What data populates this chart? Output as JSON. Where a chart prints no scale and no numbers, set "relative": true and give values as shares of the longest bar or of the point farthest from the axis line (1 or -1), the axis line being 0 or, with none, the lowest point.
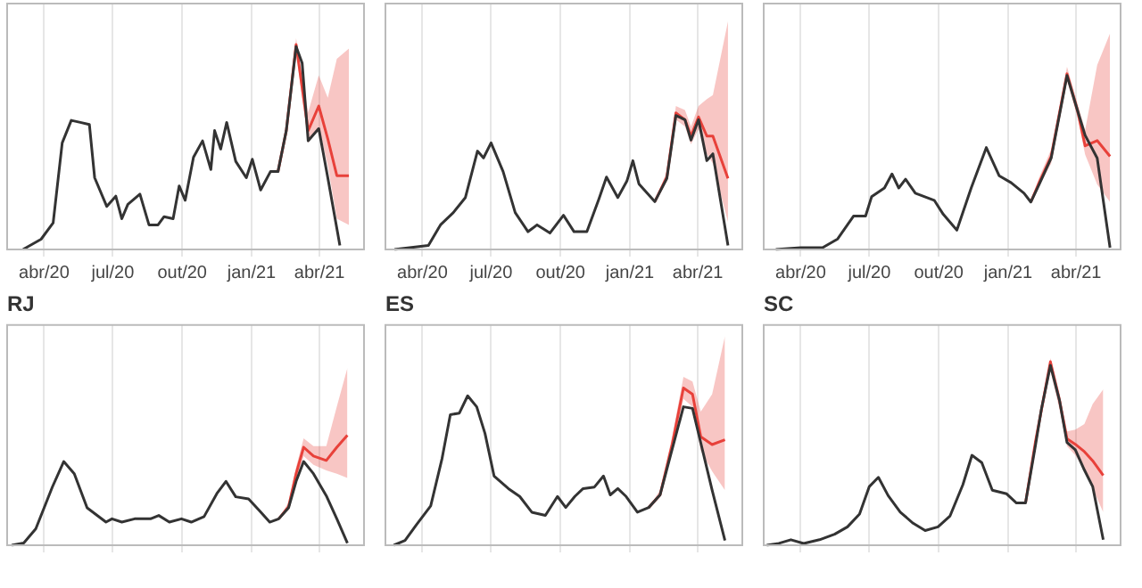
{
  "chart_data": [
    {
      "type": "line",
      "relative": true,
      "grid": "x",
      "tick_labels": "x",
      "xlim": [
        "2020-02-12",
        "2021-05-30"
      ],
      "xticks": [
        {
          "value": "2020-04-01",
          "label": "abr/20"
        },
        {
          "value": "2020-07-01",
          "label": "jul/20"
        },
        {
          "value": "2020-10-01",
          "label": "out/20"
        },
        {
          "value": "2021-01-01",
          "label": "jan/21"
        },
        {
          "value": "2021-04-01",
          "label": "abr/21"
        }
      ],
      "series": [
        {
          "color": "#333333",
          "x": [
            "2020-03-04",
            "2020-03-28",
            "2020-04-13",
            "2020-04-25",
            "2020-05-07",
            "2020-05-19",
            "2020-05-31",
            "2020-06-07",
            "2020-06-23",
            "2020-07-05",
            "2020-07-13",
            "2020-07-21",
            "2020-08-06",
            "2020-08-18",
            "2020-08-30",
            "2020-09-07",
            "2020-09-19",
            "2020-09-27",
            "2020-10-05",
            "2020-10-16",
            "2020-10-28",
            "2020-11-08",
            "2020-11-13",
            "2020-11-21",
            "2020-11-29",
            "2020-12-11",
            "2020-12-25",
            "2021-01-02",
            "2021-01-13",
            "2021-01-26",
            "2021-02-05",
            "2021-02-16",
            "2021-03-01",
            "2021-03-09",
            "2021-03-17",
            "2021-03-31",
            "2021-04-12",
            "2021-04-28"
          ],
          "values": [
            0,
            0.05,
            0.13,
            0.52,
            0.63,
            0.62,
            0.61,
            0.35,
            0.21,
            0.26,
            0.15,
            0.22,
            0.27,
            0.12,
            0.12,
            0.16,
            0.15,
            0.31,
            0.24,
            0.45,
            0.53,
            0.39,
            0.58,
            0.49,
            0.62,
            0.43,
            0.35,
            0.44,
            0.29,
            0.38,
            0.38,
            0.58,
            0.99,
            0.91,
            0.53,
            0.59,
            0.35,
            0.02
          ]
        },
        {
          "color": "#e8413a",
          "x": [
            "2021-02-05",
            "2021-02-16",
            "2021-03-01",
            "2021-03-17",
            "2021-03-31",
            "2021-04-12",
            "2021-04-24",
            "2021-05-10"
          ],
          "values": [
            0.38,
            0.58,
            1,
            0.58,
            0.7,
            0.54,
            0.36,
            0.36
          ],
          "lower": [
            0.38,
            0.56,
            0.96,
            0.52,
            0.6,
            0.41,
            0.15,
            0.12
          ],
          "upper": [
            0.38,
            0.6,
            1.03,
            0.67,
            0.85,
            0.74,
            0.93,
            0.98
          ]
        }
      ]
    },
    {
      "type": "line",
      "relative": true,
      "grid": "x",
      "tick_labels": "x",
      "xlim": [
        "2020-02-12",
        "2021-05-30"
      ],
      "xticks": [
        {
          "value": "2020-04-01",
          "label": "abr/20"
        },
        {
          "value": "2020-07-01",
          "label": "jul/20"
        },
        {
          "value": "2020-10-01",
          "label": "out/20"
        },
        {
          "value": "2021-01-01",
          "label": "jan/21"
        },
        {
          "value": "2021-04-01",
          "label": "abr/21"
        }
      ],
      "series": [
        {
          "color": "#333333",
          "x": [
            "2020-02-24",
            "2020-04-09",
            "2020-04-25",
            "2020-05-12",
            "2020-05-28",
            "2020-06-13",
            "2020-06-21",
            "2020-07-01",
            "2020-07-17",
            "2020-08-02",
            "2020-08-19",
            "2020-08-31",
            "2020-09-17",
            "2020-10-05",
            "2020-10-19",
            "2020-11-05",
            "2020-11-21",
            "2020-12-01",
            "2020-12-16",
            "2020-12-28",
            "2021-01-05",
            "2021-01-13",
            "2021-02-03",
            "2021-02-19",
            "2021-03-03",
            "2021-03-15",
            "2021-03-23",
            "2021-04-02",
            "2021-04-13",
            "2021-04-21",
            "2021-05-11"
          ],
          "values": [
            0,
            0.03,
            0.18,
            0.27,
            0.38,
            0.72,
            0.67,
            0.78,
            0.57,
            0.27,
            0.13,
            0.18,
            0.12,
            0.25,
            0.13,
            0.13,
            0.37,
            0.53,
            0.38,
            0.5,
            0.65,
            0.48,
            0.35,
            0.52,
            0.98,
            0.95,
            0.8,
            0.95,
            0.65,
            0.7,
            0.03
          ]
        },
        {
          "color": "#e8413a",
          "x": [
            "2021-02-03",
            "2021-02-19",
            "2021-03-03",
            "2021-03-15",
            "2021-03-23",
            "2021-04-02",
            "2021-04-13",
            "2021-04-21",
            "2021-05-11"
          ],
          "values": [
            0.35,
            0.53,
            1,
            0.95,
            0.83,
            0.97,
            0.83,
            0.83,
            0.52
          ],
          "lower": [
            0.35,
            0.5,
            0.95,
            0.9,
            0.77,
            0.88,
            0.7,
            0.63,
            0.2
          ],
          "upper": [
            0.35,
            0.57,
            1.05,
            1.02,
            0.9,
            1.05,
            1.1,
            1.13,
            1.67
          ]
        }
      ]
    },
    {
      "type": "line",
      "relative": true,
      "grid": "x",
      "tick_labels": "x",
      "xlim": [
        "2020-02-12",
        "2021-05-30"
      ],
      "xticks": [
        {
          "value": "2020-04-01",
          "label": "abr/20"
        },
        {
          "value": "2020-07-01",
          "label": "jul/20"
        },
        {
          "value": "2020-10-01",
          "label": "out/20"
        },
        {
          "value": "2021-01-01",
          "label": "jan/21"
        },
        {
          "value": "2021-04-01",
          "label": "abr/21"
        }
      ],
      "series": [
        {
          "color": "#333333",
          "x": [
            "2020-02-28",
            "2020-04-01",
            "2020-04-30",
            "2020-05-20",
            "2020-06-10",
            "2020-06-26",
            "2020-07-04",
            "2020-07-21",
            "2020-07-31",
            "2020-08-09",
            "2020-08-18",
            "2020-08-31",
            "2020-09-25",
            "2020-10-07",
            "2020-10-25",
            "2020-11-13",
            "2020-12-03",
            "2020-12-20",
            "2021-01-05",
            "2021-01-22",
            "2021-01-31",
            "2021-02-11",
            "2021-02-27",
            "2021-03-20",
            "2021-04-03",
            "2021-04-13",
            "2021-04-29",
            "2021-05-16"
          ],
          "values": [
            0,
            0.01,
            0.01,
            0.06,
            0.19,
            0.19,
            0.3,
            0.35,
            0.43,
            0.35,
            0.4,
            0.32,
            0.28,
            0.2,
            0.11,
            0.35,
            0.58,
            0.42,
            0.38,
            0.32,
            0.27,
            0.37,
            0.52,
            0.99,
            0.79,
            0.65,
            0.52,
            0.01
          ]
        },
        {
          "color": "#e8413a",
          "x": [
            "2021-01-31",
            "2021-02-11",
            "2021-02-27",
            "2021-03-20",
            "2021-04-03",
            "2021-04-13",
            "2021-04-29",
            "2021-05-16"
          ],
          "values": [
            0.27,
            0.38,
            0.53,
            1,
            0.79,
            0.59,
            0.62,
            0.53
          ],
          "lower": [
            0.27,
            0.36,
            0.49,
            0.96,
            0.75,
            0.54,
            0.37,
            0.27
          ],
          "upper": [
            0.27,
            0.41,
            0.57,
            1.04,
            0.83,
            0.68,
            1.05,
            1.23
          ]
        }
      ]
    },
    {
      "type": "line",
      "title": "RJ",
      "relative": true,
      "grid": "x",
      "tick_labels": false,
      "xlim": [
        "2020-02-12",
        "2021-05-30"
      ],
      "xticks": [
        {
          "value": "2020-04-01",
          "label": null
        },
        {
          "value": "2020-07-01",
          "label": null
        },
        {
          "value": "2020-10-01",
          "label": null
        },
        {
          "value": "2021-01-01",
          "label": null
        },
        {
          "value": "2021-04-01",
          "label": null
        }
      ],
      "series": [
        {
          "color": "#333333",
          "x": [
            "2020-02-18",
            "2020-03-05",
            "2020-03-21",
            "2020-04-12",
            "2020-04-27",
            "2020-05-11",
            "2020-05-28",
            "2020-06-22",
            "2020-06-30",
            "2020-07-13",
            "2020-07-30",
            "2020-08-20",
            "2020-08-31",
            "2020-09-14",
            "2020-09-30",
            "2020-10-13",
            "2020-10-30",
            "2020-11-16",
            "2020-11-28",
            "2020-12-11",
            "2020-12-28",
            "2021-01-12",
            "2021-01-25",
            "2021-02-06",
            "2021-02-19",
            "2021-03-01",
            "2021-03-11",
            "2021-03-24",
            "2021-04-10",
            "2021-04-24",
            "2021-05-08"
          ],
          "values": [
            0,
            0.02,
            0.15,
            0.53,
            0.76,
            0.65,
            0.34,
            0.21,
            0.24,
            0.21,
            0.24,
            0.24,
            0.27,
            0.21,
            0.24,
            0.21,
            0.26,
            0.47,
            0.58,
            0.44,
            0.42,
            0.31,
            0.21,
            0.24,
            0.34,
            0.58,
            0.76,
            0.65,
            0.45,
            0.24,
            0.02
          ]
        },
        {
          "color": "#e8413a",
          "x": [
            "2021-02-06",
            "2021-02-19",
            "2021-03-01",
            "2021-03-11",
            "2021-03-24",
            "2021-04-10",
            "2021-04-24",
            "2021-05-08"
          ],
          "values": [
            0.24,
            0.35,
            0.65,
            0.89,
            0.81,
            0.77,
            0.89,
            1
          ],
          "lower": [
            0.24,
            0.32,
            0.58,
            0.81,
            0.73,
            0.68,
            0.65,
            0.61
          ],
          "upper": [
            0.24,
            0.39,
            0.71,
            0.97,
            0.9,
            0.9,
            1.26,
            1.61
          ]
        }
      ]
    },
    {
      "type": "line",
      "title": "ES",
      "relative": true,
      "grid": "x",
      "tick_labels": false,
      "xlim": [
        "2020-02-12",
        "2021-05-30"
      ],
      "xticks": [
        {
          "value": "2020-04-01",
          "label": null
        },
        {
          "value": "2020-07-01",
          "label": null
        },
        {
          "value": "2020-10-01",
          "label": null
        },
        {
          "value": "2021-01-01",
          "label": null
        },
        {
          "value": "2021-04-01",
          "label": null
        }
      ],
      "series": [
        {
          "color": "#333333",
          "x": [
            "2020-02-23",
            "2020-03-09",
            "2020-03-24",
            "2020-04-12",
            "2020-04-27",
            "2020-05-08",
            "2020-05-20",
            "2020-05-31",
            "2020-06-12",
            "2020-06-23",
            "2020-07-05",
            "2020-07-24",
            "2020-08-08",
            "2020-08-24",
            "2020-09-11",
            "2020-09-27",
            "2020-10-08",
            "2020-10-20",
            "2020-10-31",
            "2020-11-15",
            "2020-11-27",
            "2020-12-06",
            "2020-12-16",
            "2020-12-27",
            "2021-01-11",
            "2021-01-26",
            "2021-02-10",
            "2021-02-26",
            "2021-03-13",
            "2021-03-25",
            "2021-04-05",
            "2021-04-20",
            "2021-05-07"
          ],
          "values": [
            0,
            0.03,
            0.13,
            0.25,
            0.55,
            0.83,
            0.84,
            0.95,
            0.88,
            0.71,
            0.44,
            0.36,
            0.31,
            0.21,
            0.19,
            0.31,
            0.24,
            0.31,
            0.36,
            0.37,
            0.44,
            0.32,
            0.36,
            0.31,
            0.21,
            0.24,
            0.32,
            0.61,
            0.88,
            0.87,
            0.65,
            0.35,
            0.03
          ]
        },
        {
          "color": "#e8413a",
          "x": [
            "2021-01-26",
            "2021-02-10",
            "2021-02-26",
            "2021-03-13",
            "2021-03-25",
            "2021-04-05",
            "2021-04-20",
            "2021-05-07"
          ],
          "values": [
            0.24,
            0.32,
            0.64,
            1,
            0.96,
            0.69,
            0.64,
            0.67
          ],
          "lower": [
            0.24,
            0.31,
            0.59,
            0.93,
            0.88,
            0.6,
            0.47,
            0.35
          ],
          "upper": [
            0.24,
            0.35,
            0.69,
            1.07,
            1.04,
            0.85,
            0.96,
            1.33
          ]
        }
      ]
    },
    {
      "type": "line",
      "title": "SC",
      "relative": true,
      "grid": "x",
      "tick_labels": false,
      "xlim": [
        "2020-02-12",
        "2021-05-30"
      ],
      "xticks": [
        {
          "value": "2020-04-01",
          "label": null
        },
        {
          "value": "2020-07-01",
          "label": null
        },
        {
          "value": "2020-10-01",
          "label": null
        },
        {
          "value": "2021-01-01",
          "label": null
        },
        {
          "value": "2021-04-01",
          "label": null
        }
      ],
      "series": [
        {
          "color": "#333333",
          "x": [
            "2020-02-16",
            "2020-03-03",
            "2020-03-19",
            "2020-04-05",
            "2020-04-26",
            "2020-05-16",
            "2020-06-02",
            "2020-06-18",
            "2020-07-01",
            "2020-07-13",
            "2020-07-26",
            "2020-08-11",
            "2020-08-28",
            "2020-09-13",
            "2020-09-30",
            "2020-10-16",
            "2020-11-02",
            "2020-11-14",
            "2020-11-27",
            "2020-12-11",
            "2020-12-30",
            "2021-01-12",
            "2021-01-24",
            "2021-02-06",
            "2021-02-14",
            "2021-02-26",
            "2021-03-10",
            "2021-03-20",
            "2021-03-31",
            "2021-04-12",
            "2021-04-23",
            "2021-05-07"
          ],
          "values": [
            0,
            0.01,
            0.03,
            0.01,
            0.03,
            0.06,
            0.1,
            0.17,
            0.32,
            0.37,
            0.27,
            0.18,
            0.12,
            0.08,
            0.1,
            0.16,
            0.33,
            0.49,
            0.45,
            0.3,
            0.28,
            0.23,
            0.23,
            0.54,
            0.74,
            0.98,
            0.79,
            0.56,
            0.52,
            0.41,
            0.32,
            0.03
          ]
        },
        {
          "color": "#e8413a",
          "x": [
            "2021-01-24",
            "2021-02-06",
            "2021-02-26",
            "2021-03-10",
            "2021-03-20",
            "2021-03-31",
            "2021-04-12",
            "2021-04-23",
            "2021-05-07"
          ],
          "values": [
            0.23,
            0.56,
            1,
            0.79,
            0.58,
            0.55,
            0.51,
            0.46,
            0.38
          ],
          "lower": [
            0.23,
            0.53,
            0.95,
            0.74,
            0.54,
            0.49,
            0.41,
            0.31,
            0.18
          ],
          "upper": [
            0.23,
            0.59,
            1.02,
            0.83,
            0.62,
            0.63,
            0.66,
            0.77,
            0.85
          ]
        }
      ]
    }
  ]
}
